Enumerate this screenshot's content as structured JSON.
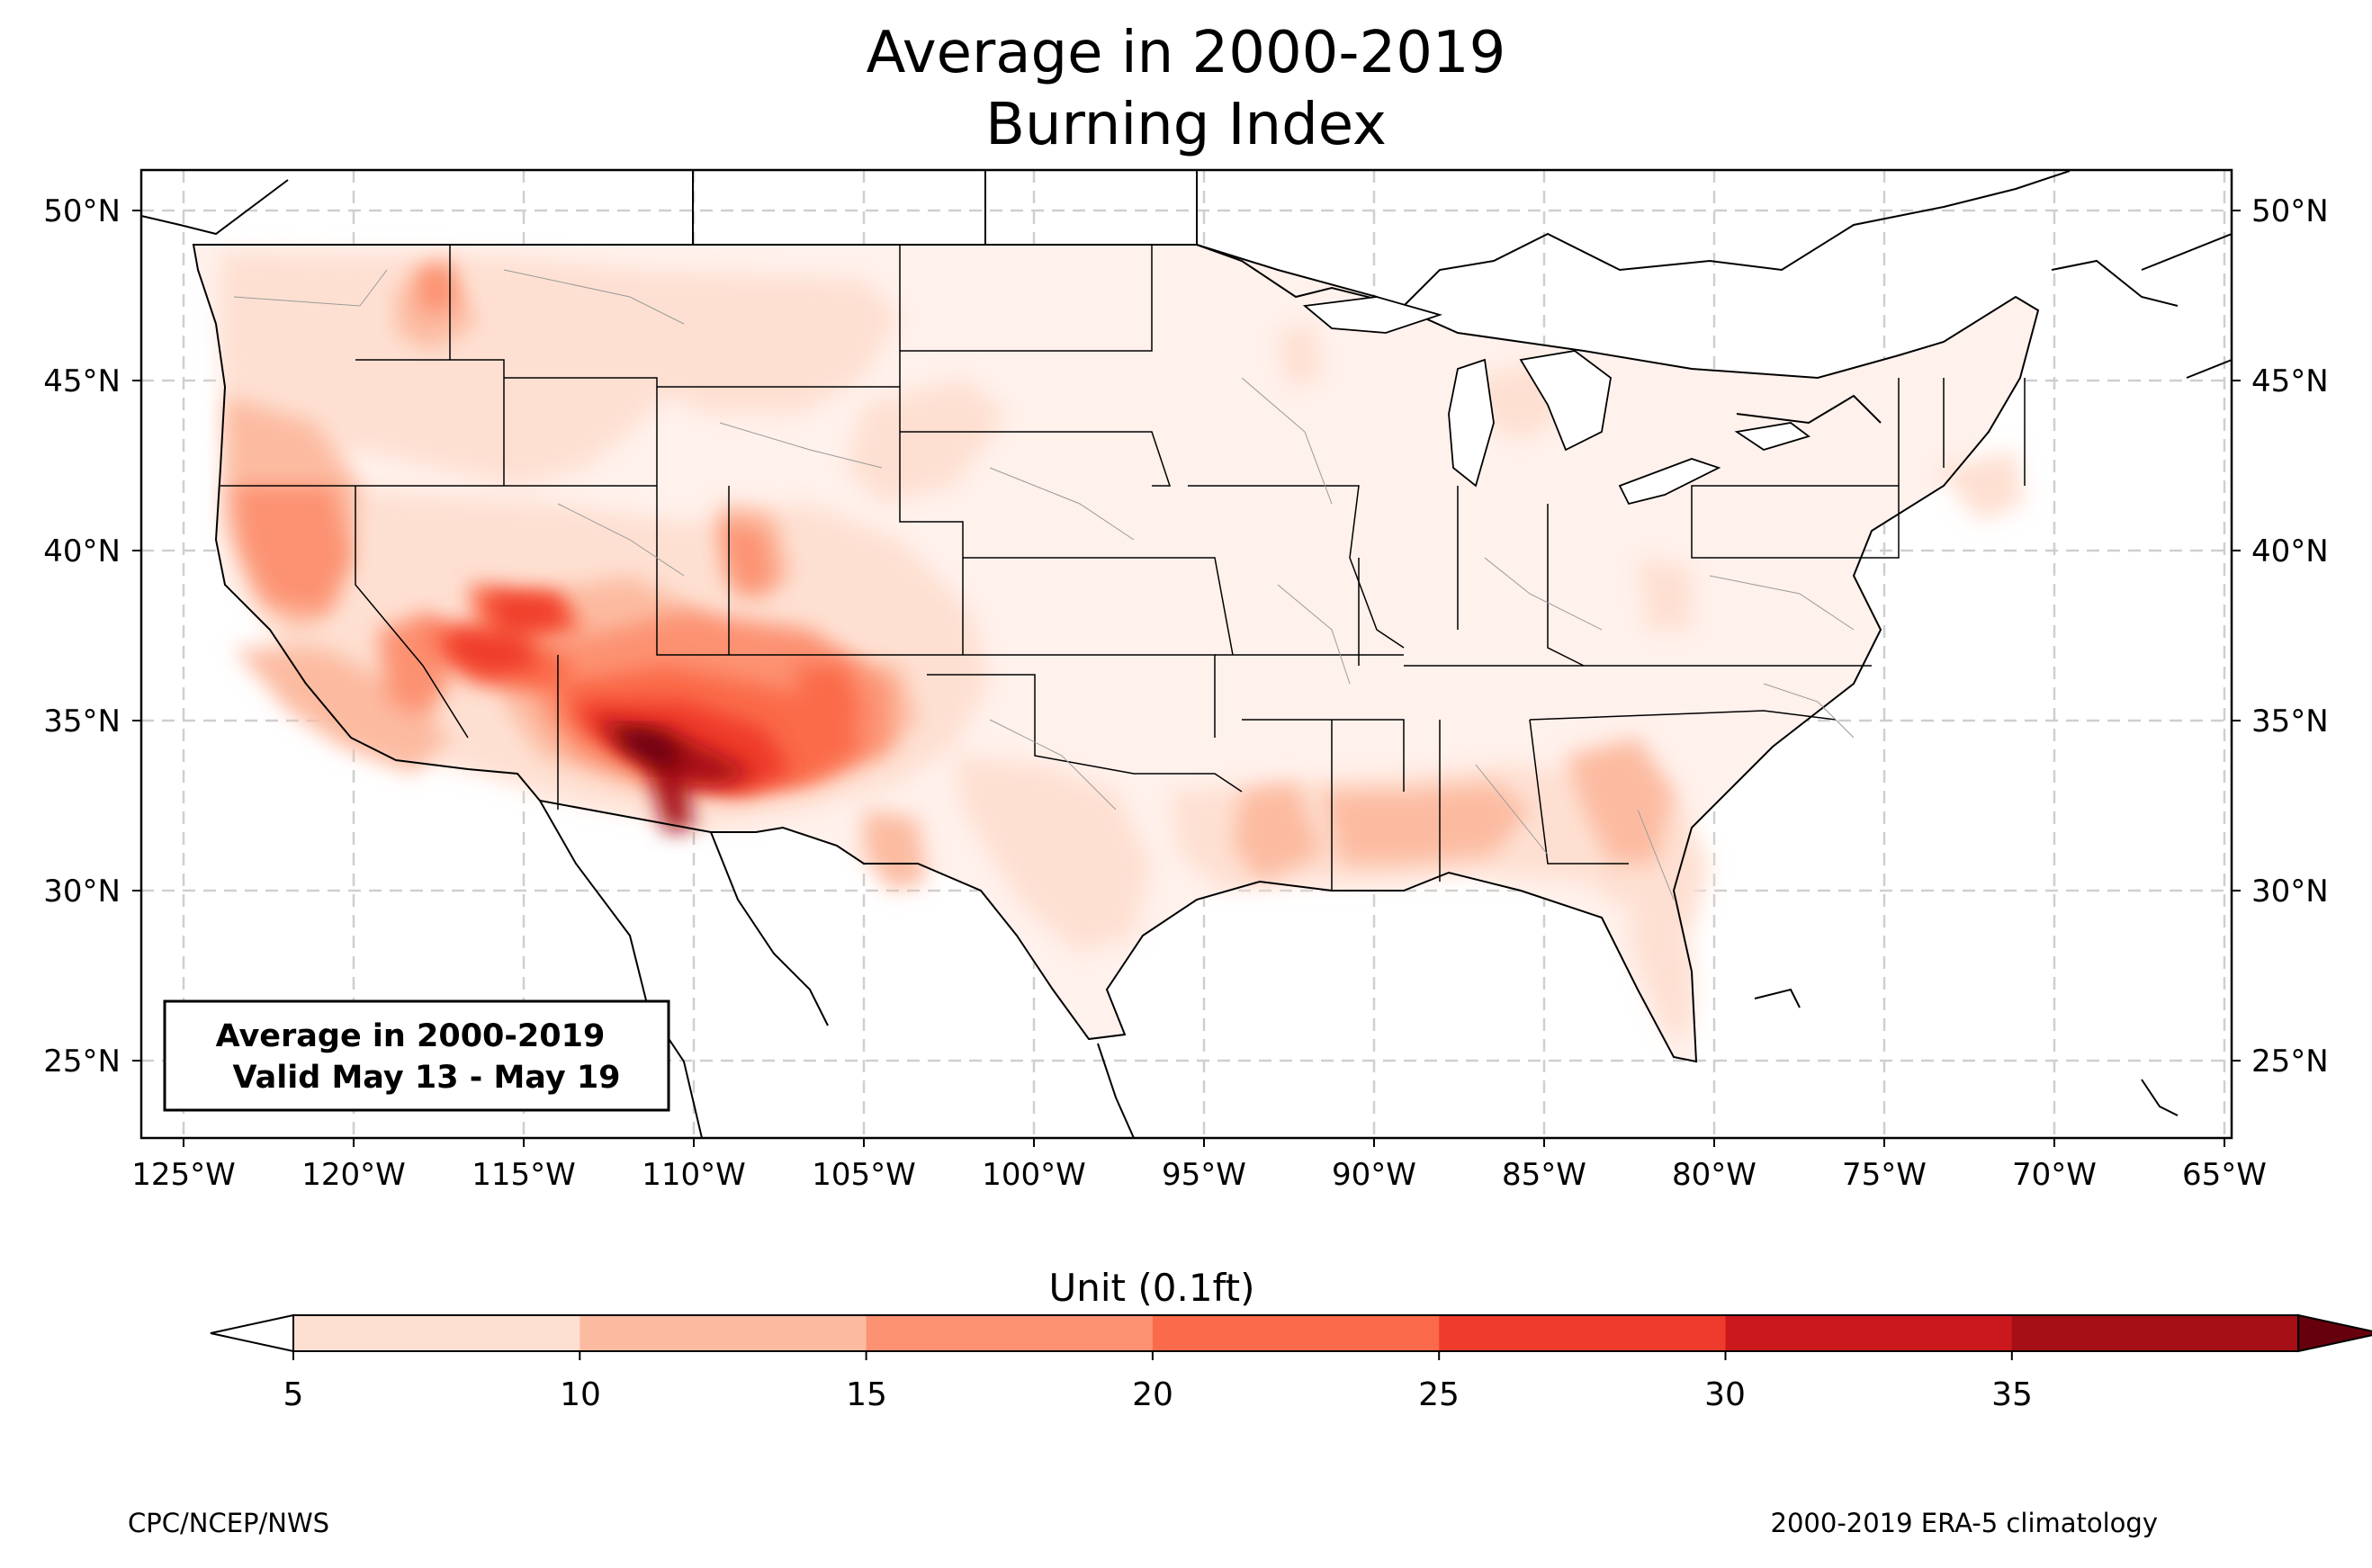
{
  "title": {
    "line1": "Average in 2000-2019",
    "line2": "Burning Index"
  },
  "map": {
    "lat_ticks": [
      "50°N",
      "45°N",
      "40°N",
      "35°N",
      "30°N",
      "25°N"
    ],
    "lon_ticks": [
      "125°W",
      "120°W",
      "115°W",
      "110°W",
      "105°W",
      "100°W",
      "95°W",
      "90°W",
      "85°W",
      "80°W",
      "75°W",
      "70°W",
      "65°W"
    ]
  },
  "infobox": {
    "line1": "Average in 2000-2019",
    "line2": "Valid May 13 - May 19"
  },
  "colorbar": {
    "label": "Unit (0.1ft)",
    "ticks": [
      "5",
      "10",
      "15",
      "20",
      "25",
      "30",
      "35"
    ],
    "colors": [
      "#fee0d2",
      "#fcbba1",
      "#fc9272",
      "#fb6a4a",
      "#ef3b2c",
      "#cb181d",
      "#a50f15"
    ],
    "under_color": "#ffffff",
    "over_color": "#67000d"
  },
  "footer": {
    "left": "CPC/NCEP/NWS",
    "right": "2000-2019 ERA-5 climatology"
  }
}
